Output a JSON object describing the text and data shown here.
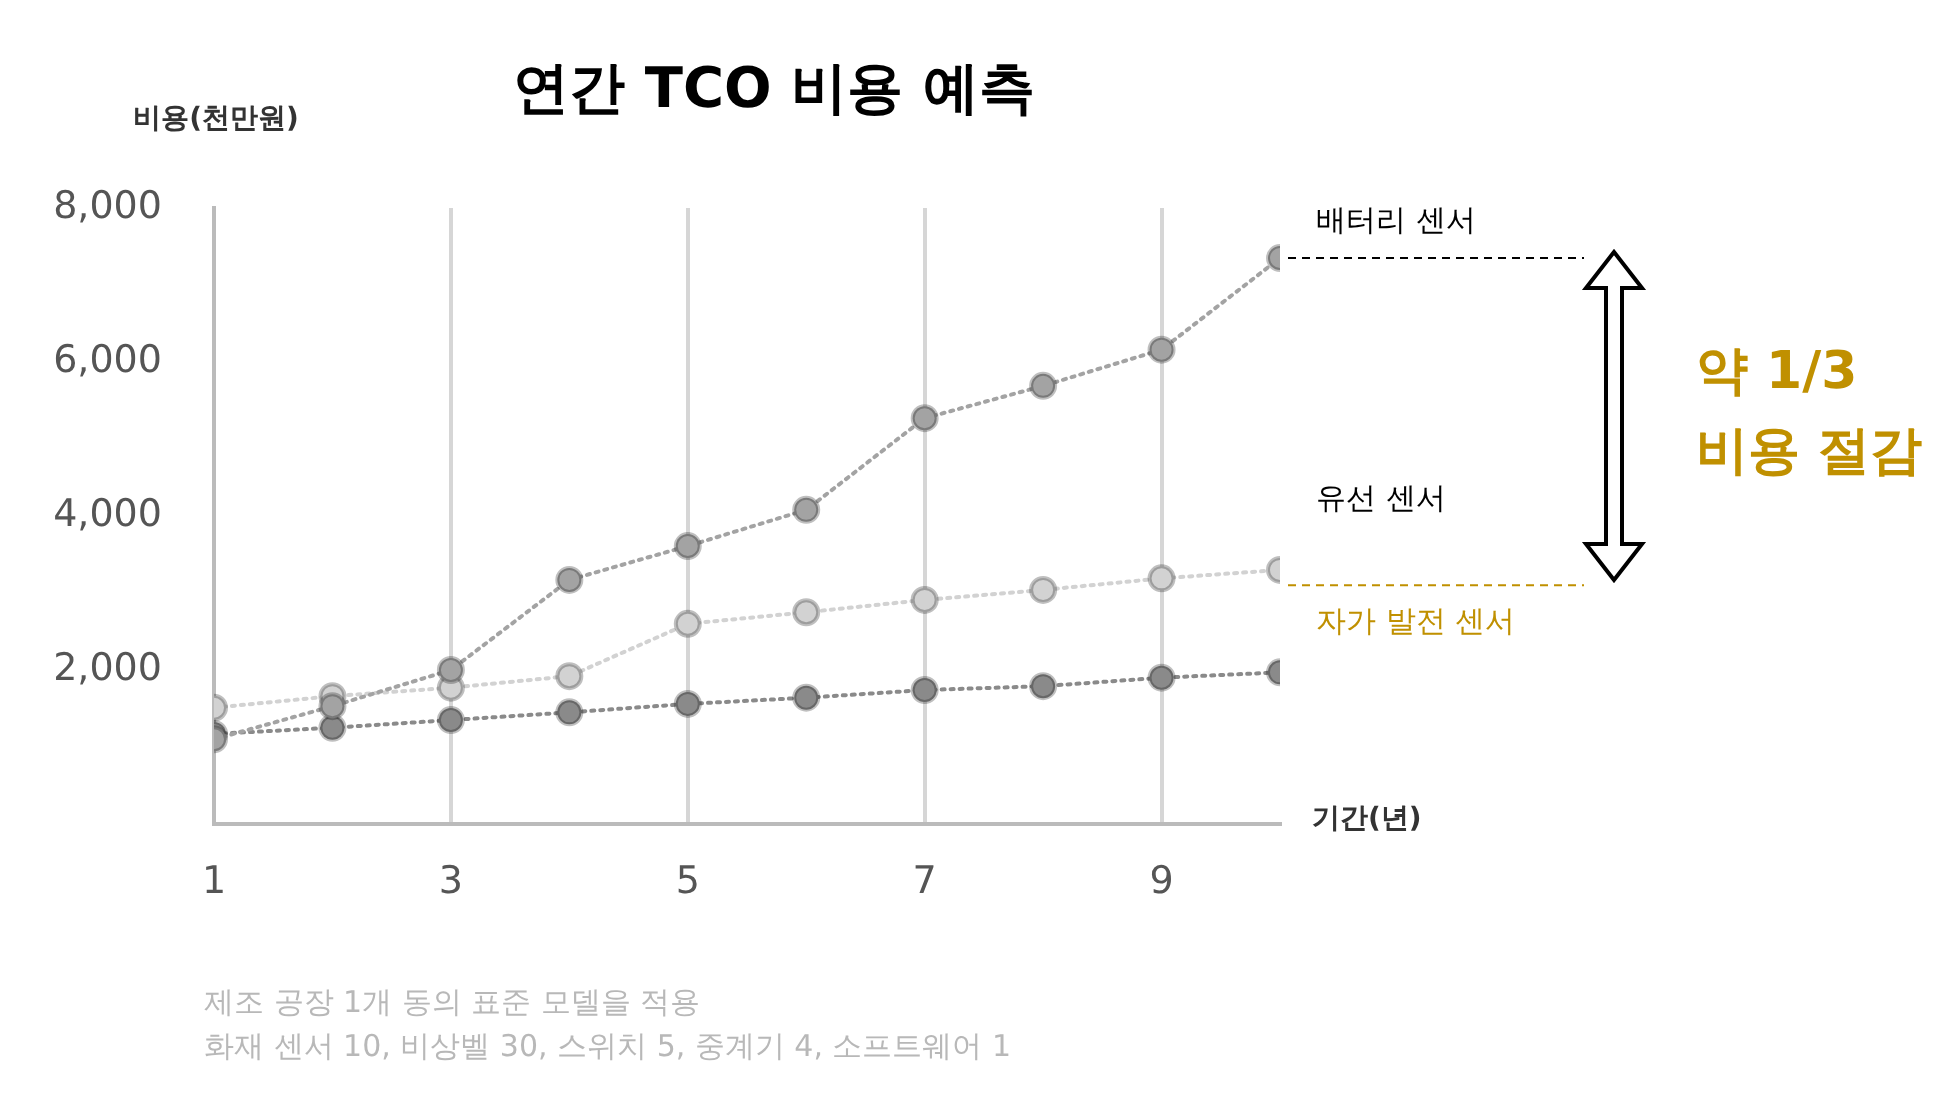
{
  "chart_data": {
    "type": "line",
    "title": "연간 TCO 비용 예측",
    "ylabel": "비용(천만원)",
    "xlabel": "기간(년)",
    "x": [
      1,
      2,
      3,
      4,
      5,
      6,
      7,
      8,
      9,
      10
    ],
    "series": [
      {
        "color": "#a3a3a3",
        "values": [
          1100,
          1530,
          2000,
          3170,
          3610,
          4080,
          5270,
          5690,
          6160,
          7350
        ]
      },
      {
        "color": "#d2d2d2",
        "values": [
          1510,
          1660,
          1770,
          1920,
          2600,
          2750,
          2910,
          3040,
          3190,
          3300
        ]
      },
      {
        "color": "#8a8a8a",
        "values": [
          1170,
          1250,
          1350,
          1450,
          1560,
          1640,
          1740,
          1790,
          1900,
          1970
        ]
      }
    ],
    "xlim": [
      1,
      10
    ],
    "xticks": [
      1,
      3,
      5,
      7,
      9
    ],
    "ylim": [
      0,
      8000
    ],
    "yticks": [
      {
        "value": 2000,
        "label": "2,000"
      },
      {
        "value": 4000,
        "label": "4,000"
      },
      {
        "value": 6000,
        "label": "6,000"
      },
      {
        "value": 8000,
        "label": "8,000"
      }
    ],
    "grid": "x",
    "marker": "circle",
    "line_style": "dotted",
    "ref_lines": [
      {
        "axis": "y",
        "value": 7350,
        "label": "배터리 센서",
        "color": "#000000",
        "line_style": "dashed"
      },
      {
        "axis": "y",
        "value": 3100,
        "label": "자가 발전 센서",
        "color": "#c09000",
        "line_style": "dashed"
      }
    ],
    "annotations": [
      "유선 센서",
      "약 1/3\n비용 절감",
      "제조 공장 1개 동의 표준 모델을 적용",
      "화재 센서 10, 비상벨 30, 스위치 5, 중계기 4, 소프트웨어 1"
    ]
  }
}
